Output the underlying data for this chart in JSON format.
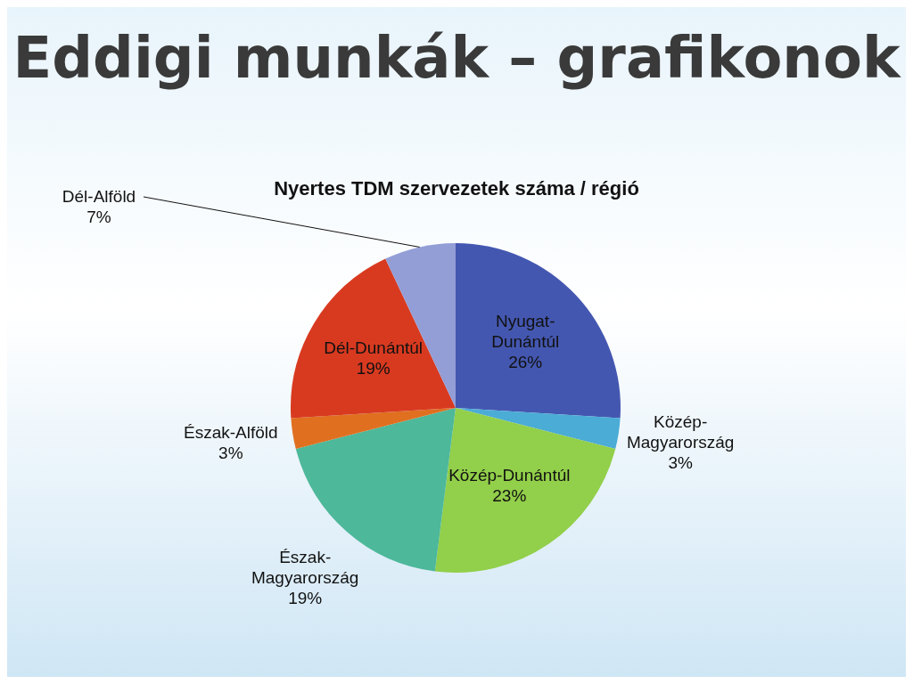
{
  "chart_data": {
    "type": "pie",
    "title": "Eddigi munkák – grafikonok",
    "subtitle": "Nyertes TDM szervezetek száma / régió",
    "categories": [
      "Nyugat-Dunántúl",
      "Közép-Magyarország",
      "Közép-Dunántúl",
      "Észak-Magyarország",
      "Észak-Alföld",
      "Dél-Dunántúl",
      "Dél-Alföld"
    ],
    "values": [
      26,
      3,
      23,
      19,
      3,
      19,
      7
    ],
    "value_labels": [
      "26%",
      "3%",
      "23%",
      "19%",
      "3%",
      "19%",
      "7%"
    ],
    "colors": [
      "#4457b0",
      "#4bacd6",
      "#92cf4a",
      "#4db89a",
      "#e07020",
      "#d83a20",
      "#939dd6"
    ],
    "legend": false
  }
}
